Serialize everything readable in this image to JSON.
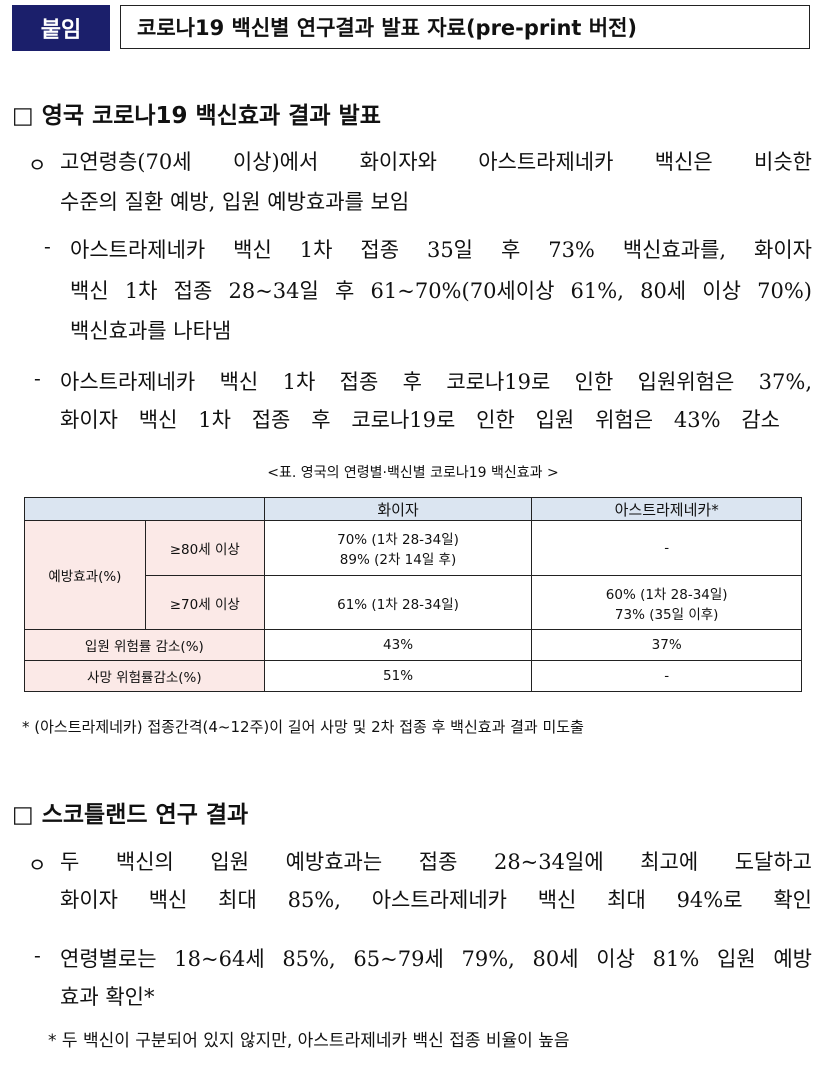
{
  "header": {
    "badge": "붙임",
    "title": "코로나19 백신별 연구결과 발표 자료(pre-print 버전)"
  },
  "section1": {
    "heading": "□ 영국 코로나19 백신효과 결과 발표",
    "bullet_marker": "ㅇ",
    "bullet_lines": [
      "고연령층(70세 이상)에서 화이자와 아스트라제네카 백신은 비슷한",
      "수준의 질환 예방, 입원 예방효과를 보임"
    ],
    "sub1_marker": "-",
    "sub1_lines": [
      "아스트라제네카 백신 1차 접종 35일 후 73% 백신효과를, 화이자",
      "백신 1차 접종 28~34일 후 61~70%(70세이상 61%, 80세 이상 70%)",
      "백신효과를 나타냄"
    ],
    "sub2_marker": "-",
    "sub2_lines": [
      "아스트라제네카 백신 1차 접종 후 코로나19로 인한 입원위험은 37%,",
      "화이자 백신 1차 접종 후 코로나19로 인한 입원 위험은 43% 감소"
    ]
  },
  "table": {
    "caption": "<표. 영국의 연령별·백신별 코로나19 백신효과 >",
    "headers": [
      "",
      "화이자",
      "아스트라제네카*"
    ],
    "group_label": "예방효과(%)",
    "rows": [
      {
        "label": "≥80세 이상",
        "pfizer": [
          "70% (1차 28-34일)",
          "89% (2차 14일 후)"
        ],
        "az": [
          "-"
        ]
      },
      {
        "label": "≥70세 이상",
        "pfizer": [
          "61% (1차 28-34일)"
        ],
        "az": [
          "60% (1차 28-34일)",
          "73% (35일 이후)"
        ]
      },
      {
        "label": "입원 위험률 감소(%)",
        "pfizer": [
          "43%"
        ],
        "az": [
          "37%"
        ]
      },
      {
        "label": "사망 위험률감소(%)",
        "pfizer": [
          "51%"
        ],
        "az": [
          "-"
        ]
      }
    ],
    "footnote": "* (아스트라제네카) 접종간격(4~12주)이 길어 사망 및 2차 접종 후 백신효과 결과 미도출"
  },
  "section2": {
    "heading": "□ 스코틀랜드 연구 결과",
    "bullet_marker": "ㅇ",
    "bullet_lines": [
      "두 백신의 입원 예방효과는 접종 28~34일에 최고에 도달하고",
      "화이자 백신 최대 85%, 아스트라제네카 백신 최대 94%로 확인"
    ],
    "sub1_marker": "-",
    "sub1_lines": [
      "연령별로는 18~64세 85%, 65~79세 79%, 80세 이상 81% 입원 예방",
      "효과 확인*"
    ],
    "footnote": "* 두 백신이 구분되어 있지 않지만, 아스트라제네카 백신 접종 비율이 높음"
  }
}
